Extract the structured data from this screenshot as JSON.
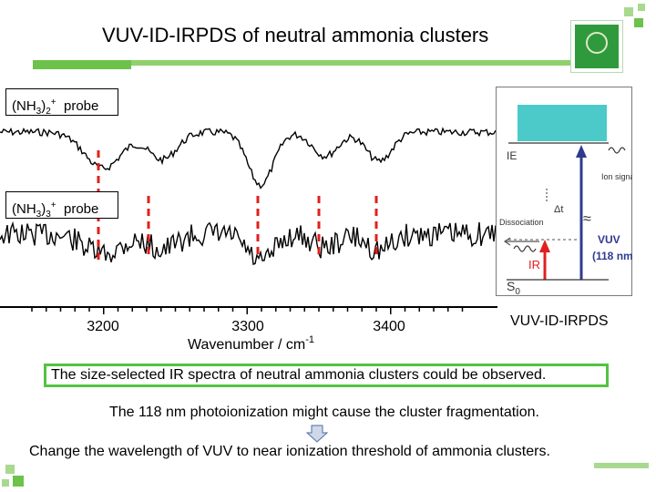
{
  "slide": {
    "title": "VUV-ID-IRPDS of neutral ammonia clusters",
    "logo_icon": "university-seal-logo",
    "accent_color": "#6cc24a"
  },
  "spectra": {
    "probe_top": {
      "base": "(NH",
      "sub1": "3",
      "mid": ")",
      "sub2": "2",
      "sup": "+",
      "tail": "  probe"
    },
    "probe_bottom": {
      "base": "(NH",
      "sub1": "3",
      "mid": ")",
      "sub2": "3",
      "sup": "+",
      "tail": "  probe"
    },
    "xlabel_prefix": "Wavenumber / cm",
    "xlabel_sup": "-1",
    "ticks": [
      "3200",
      "3300",
      "3400"
    ],
    "marker_color": "#e0201c"
  },
  "diagram": {
    "ie": "IE",
    "ion_signal": "Ion signal",
    "delta_t": "Δt",
    "dissociation": "Dissociation",
    "vuv": "VUV",
    "vuv_wavelength": "(118 nm)",
    "ir": "IR",
    "s0": "S",
    "s0_sub": "0",
    "ie_fill": "#4cc9c9",
    "arrow_color": "#2f3a8f",
    "ir_color": "#e02020"
  },
  "method_label": "VUV-ID-IRPDS",
  "notes": {
    "highlight": "The size-selected IR spectra of neutral ammonia clusters could be observed.",
    "fragmentation": "The 118 nm photoionization might cause the cluster fragmentation.",
    "proposal": "Change the wavelength of VUV to near ionization threshold of ammonia clusters."
  }
}
